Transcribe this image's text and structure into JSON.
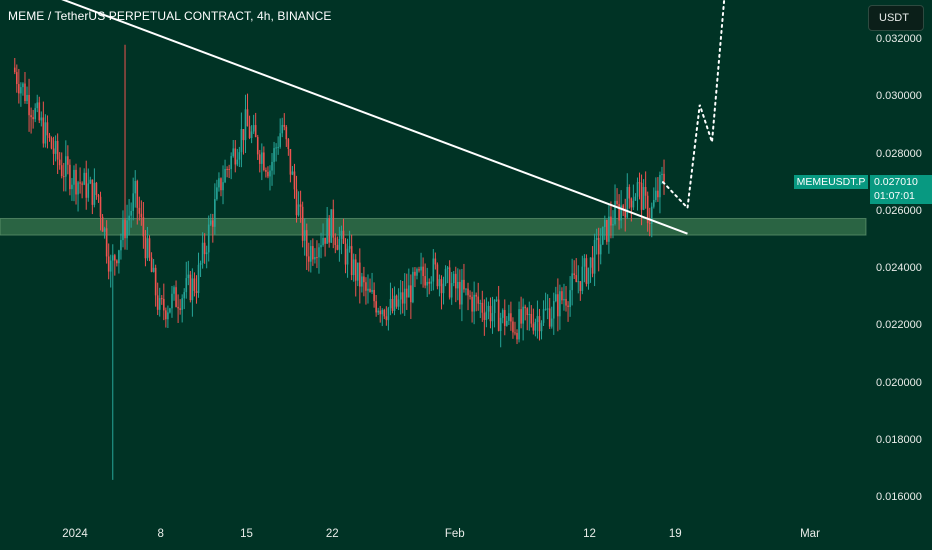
{
  "header": {
    "title": "MEME / TetherUS PERPETUAL CONTRACT, 4h, BINANCE"
  },
  "toolbar": {
    "currency_label": "USDT"
  },
  "price_tag": {
    "symbol": "MEMEUSDT.P",
    "price": "0.027010",
    "countdown": "01:07:01"
  },
  "colors": {
    "background": "#003325",
    "up": "#26a69a",
    "down": "#ef5350",
    "support_zone": "#4c8c5c",
    "trendline": "#ffffff",
    "price_tag": "#089981"
  },
  "chart_data": {
    "type": "candlestick",
    "symbol": "MEME / TetherUS PERPETUAL CONTRACT",
    "timeframe": "4h",
    "exchange": "BINANCE",
    "y_ticks": [
      "0.032000",
      "0.030000",
      "0.028000",
      "0.026000",
      "0.024000",
      "0.022000",
      "0.020000",
      "0.018000",
      "0.016000"
    ],
    "y_range": [
      0.0153,
      0.0331
    ],
    "x_ticks": [
      "2024",
      "8",
      "15",
      "22",
      "Feb",
      "12",
      "19",
      "Mar"
    ],
    "last_price": 0.02701,
    "price_path_approx": [
      {
        "date": "2023-12-27",
        "price": 0.031
      },
      {
        "date": "2023-12-31",
        "price": 0.0275
      },
      {
        "date": "2024-01-03",
        "price": 0.0265
      },
      {
        "date": "2024-01-04",
        "price": 0.024
      },
      {
        "date": "2024-01-06",
        "price": 0.0265
      },
      {
        "date": "2024-01-08",
        "price": 0.0225
      },
      {
        "date": "2024-01-11",
        "price": 0.0235
      },
      {
        "date": "2024-01-13",
        "price": 0.027
      },
      {
        "date": "2024-01-15",
        "price": 0.029
      },
      {
        "date": "2024-01-17",
        "price": 0.0275
      },
      {
        "date": "2024-01-18",
        "price": 0.029
      },
      {
        "date": "2024-01-20",
        "price": 0.0245
      },
      {
        "date": "2024-01-22",
        "price": 0.0255
      },
      {
        "date": "2024-01-25",
        "price": 0.023
      },
      {
        "date": "2024-01-27",
        "price": 0.0225
      },
      {
        "date": "2024-01-30",
        "price": 0.024
      },
      {
        "date": "2024-02-02",
        "price": 0.023
      },
      {
        "date": "2024-02-06",
        "price": 0.022
      },
      {
        "date": "2024-02-09",
        "price": 0.0225
      },
      {
        "date": "2024-02-12",
        "price": 0.024
      },
      {
        "date": "2024-02-14",
        "price": 0.0258
      },
      {
        "date": "2024-02-16",
        "price": 0.0268
      },
      {
        "date": "2024-02-17",
        "price": 0.0258
      },
      {
        "date": "2024-02-18",
        "price": 0.027
      }
    ],
    "extreme_wicks": {
      "high": 0.0318,
      "low": 0.0166
    },
    "support_zone": [
      0.02515,
      0.02573
    ],
    "trendline": {
      "from": {
        "date": "2023-12-29",
        "price": 0.0337
      },
      "to": {
        "date": "2024-02-20",
        "price": 0.0252
      }
    },
    "projection": [
      {
        "date": "2024-02-18",
        "price": 0.027
      },
      {
        "date": "2024-02-20",
        "price": 0.0261
      },
      {
        "date": "2024-02-21",
        "price": 0.0297
      },
      {
        "date": "2024-02-22",
        "price": 0.0284
      },
      {
        "date": "2024-02-23",
        "price": 0.0334
      }
    ],
    "grid": false
  }
}
